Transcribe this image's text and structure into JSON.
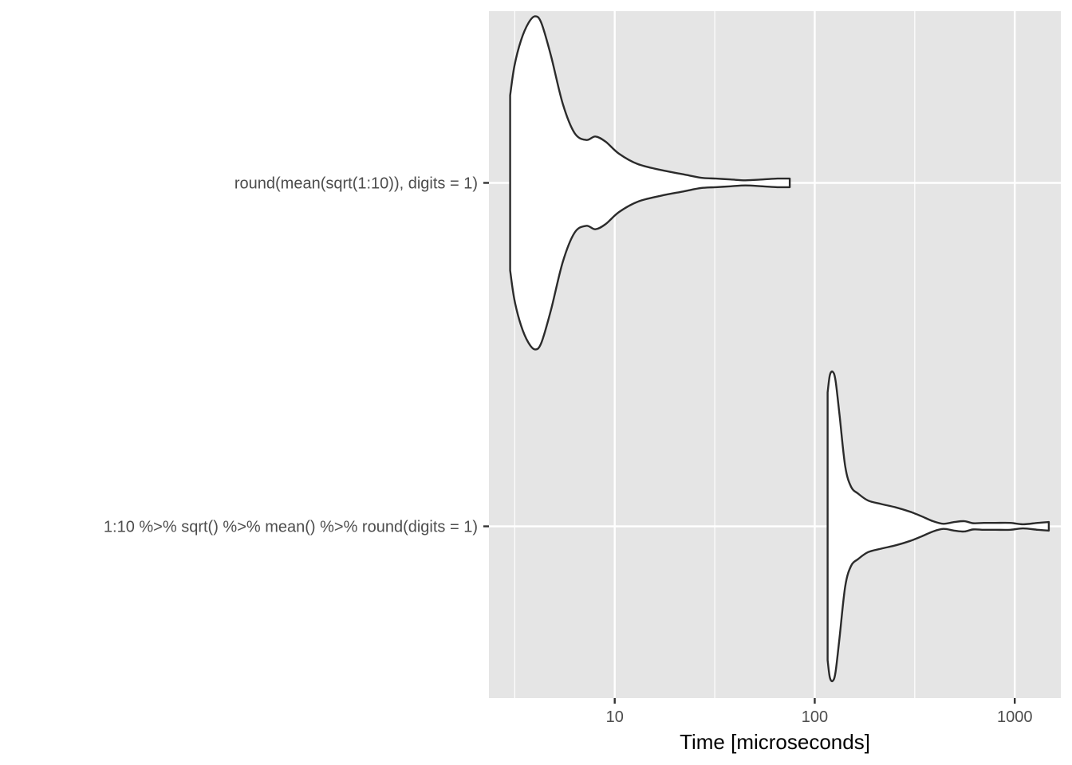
{
  "chart_data": {
    "type": "violin",
    "xlabel": "Time [microseconds]",
    "ylabel": "",
    "x_scale": "log10",
    "xlim": [
      2.35,
      1700
    ],
    "x_ticks": [
      {
        "value": 10,
        "label": "10"
      },
      {
        "value": 100,
        "label": "100"
      },
      {
        "value": 1000,
        "label": "1000"
      }
    ],
    "x_minor_ticks": [
      3.162,
      31.62,
      316.2
    ],
    "grid": true,
    "categories": [
      "round(mean(sqrt(1:10)), digits = 1)",
      "1:10 %>% sqrt() %>% mean() %>% round(digits = 1)"
    ],
    "series": [
      {
        "category": "round(mean(sqrt(1:10)), digits = 1)",
        "profile": [
          [
            3.0,
            0.51
          ],
          [
            3.15,
            0.68
          ],
          [
            3.4,
            0.83
          ],
          [
            3.7,
            0.93
          ],
          [
            4.0,
            0.97
          ],
          [
            4.3,
            0.93
          ],
          [
            4.8,
            0.74
          ],
          [
            5.5,
            0.46
          ],
          [
            6.3,
            0.29
          ],
          [
            7.2,
            0.25
          ],
          [
            8.0,
            0.27
          ],
          [
            9.0,
            0.24
          ],
          [
            10.5,
            0.17
          ],
          [
            13.0,
            0.11
          ],
          [
            17.0,
            0.075
          ],
          [
            22.0,
            0.05
          ],
          [
            27.0,
            0.03
          ],
          [
            32.0,
            0.025
          ],
          [
            38.0,
            0.02
          ],
          [
            45.0,
            0.015
          ],
          [
            55.0,
            0.02
          ],
          [
            65.0,
            0.025
          ],
          [
            75.0,
            0.025
          ]
        ]
      },
      {
        "category": "1:10 %>% sqrt() %>% mean() %>% round(digits = 1)",
        "profile": [
          [
            116.0,
            0.78
          ],
          [
            119.0,
            0.88
          ],
          [
            123.0,
            0.9
          ],
          [
            127.0,
            0.85
          ],
          [
            133.0,
            0.65
          ],
          [
            142.0,
            0.35
          ],
          [
            152.0,
            0.23
          ],
          [
            165.0,
            0.19
          ],
          [
            185.0,
            0.15
          ],
          [
            215.0,
            0.13
          ],
          [
            255.0,
            0.11
          ],
          [
            300.0,
            0.085
          ],
          [
            340.0,
            0.06
          ],
          [
            390.0,
            0.03
          ],
          [
            440.0,
            0.015
          ],
          [
            500.0,
            0.025
          ],
          [
            560.0,
            0.03
          ],
          [
            620.0,
            0.018
          ],
          [
            700.0,
            0.02
          ],
          [
            800.0,
            0.02
          ],
          [
            950.0,
            0.02
          ],
          [
            1100.0,
            0.012
          ],
          [
            1300.0,
            0.02
          ],
          [
            1480.0,
            0.025
          ]
        ]
      }
    ],
    "colors": {
      "panel_background": "#e5e5e5",
      "grid_major": "#ffffff",
      "violin_fill": "#ffffff",
      "violin_stroke": "#2b2b2b",
      "tick_text": "#4d4d4d",
      "axis_title": "#000000"
    }
  }
}
